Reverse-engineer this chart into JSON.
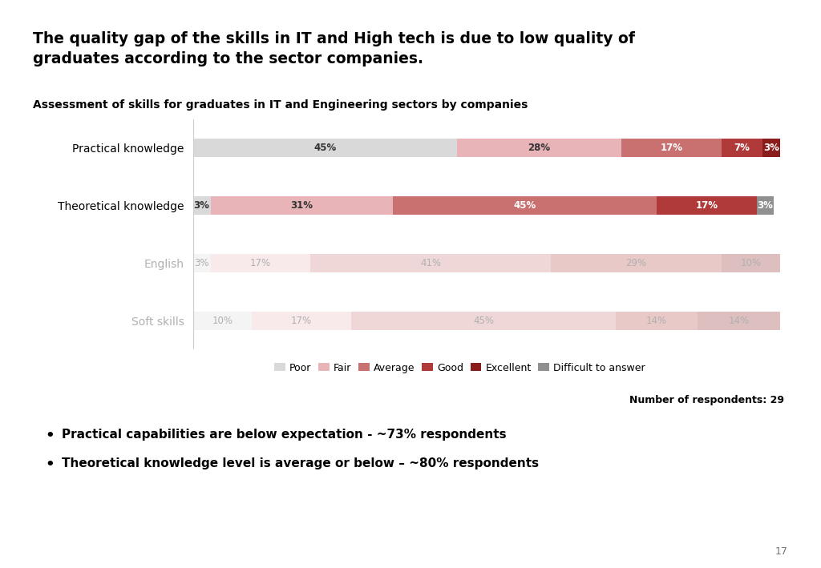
{
  "title": "The quality gap of the skills in IT and High tech is due to low quality of\ngraduates according to the sector companies.",
  "subtitle": "Assessment of skills for graduates in IT and Engineering sectors by companies",
  "categories": [
    "Practical knowledge",
    "Theoretical knowledge",
    "English",
    "Soft skills"
  ],
  "segments": [
    "Poor",
    "Fair",
    "Average",
    "Good",
    "Excellent",
    "Difficult to answer"
  ],
  "colors": {
    "Poor": "#d9d9d9",
    "Fair": "#e8b4b8",
    "Average": "#c97070",
    "Good": "#b03a3a",
    "Excellent": "#8b1c1c",
    "Difficult to answer": "#909090"
  },
  "data": {
    "Practical knowledge": [
      45,
      28,
      17,
      7,
      3,
      0
    ],
    "Theoretical knowledge": [
      3,
      31,
      45,
      17,
      0,
      3
    ],
    "English": [
      3,
      17,
      41,
      29,
      10,
      0
    ],
    "Soft skills": [
      10,
      17,
      45,
      14,
      14,
      0
    ]
  },
  "faded": [
    false,
    false,
    true,
    true
  ],
  "note": "Number of respondents: 29",
  "bullets": [
    "Practical capabilities are below expectation - ~73% respondents",
    "Theoretical knowledge level is average or below – ~80% respondents"
  ],
  "page_number": "17",
  "red_line_color": "#cc0000",
  "background_color": "#ffffff"
}
